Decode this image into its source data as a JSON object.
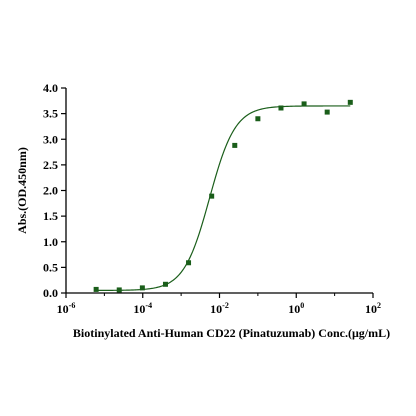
{
  "chart_data": {
    "type": "scatter",
    "title": "",
    "xlabel": "Biotinylated Anti-Human CD22 (Pinatuzumab) Conc.(μg/mL)",
    "ylabel": "Abs.(OD.450nm)",
    "x_scale": "log",
    "xlim": [
      1e-06,
      100
    ],
    "ylim": [
      0,
      4.0
    ],
    "x_ticks": [
      {
        "value": 1e-06,
        "base": "10",
        "exp": "-6"
      },
      {
        "value": 0.0001,
        "base": "10",
        "exp": "-4"
      },
      {
        "value": 0.01,
        "base": "10",
        "exp": "-2"
      },
      {
        "value": 1,
        "base": "10",
        "exp": "0"
      },
      {
        "value": 100,
        "base": "10",
        "exp": "2"
      }
    ],
    "y_ticks": [
      "0.0",
      "0.5",
      "1.0",
      "1.5",
      "2.0",
      "2.5",
      "3.0",
      "3.5",
      "4.0"
    ],
    "grid": false,
    "series": [
      {
        "color": "#1a5e1a",
        "marker": "square",
        "fit": "four-parameter logistic",
        "x": [
          6.1e-06,
          2.44e-05,
          9.77e-05,
          0.000391,
          0.00156,
          0.00625,
          0.025,
          0.1,
          0.4,
          1.6,
          6.4,
          25.6
        ],
        "y": [
          0.07,
          0.06,
          0.1,
          0.17,
          0.59,
          1.89,
          2.88,
          3.4,
          3.61,
          3.69,
          3.53,
          3.72
        ]
      }
    ],
    "fit_curve": {
      "bottom": 0.05,
      "top": 3.65,
      "ec50": 0.0055,
      "hill": 1.3
    }
  }
}
